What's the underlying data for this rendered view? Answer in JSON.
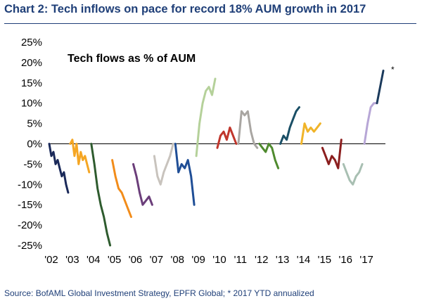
{
  "title": "Chart 2: Tech inflows on pace for record 18% AUM growth in 2017",
  "source": "Source: BofAML Global Investment Strategy, EPFR Global; * 2017 YTD annualized",
  "chart_data": {
    "type": "line",
    "annotation": "Tech flows as % of AUM",
    "end_marker": "*",
    "ylim": [
      -25,
      25
    ],
    "y_ticks": [
      25,
      20,
      15,
      10,
      5,
      0,
      -5,
      -10,
      -15,
      -20,
      -25
    ],
    "y_tick_labels": [
      "25%",
      "20%",
      "15%",
      "10%",
      "5%",
      "0%",
      "-5%",
      "-10%",
      "-15%",
      "-20%",
      "-25%"
    ],
    "x_tick_labels": [
      "'02",
      "'03",
      "'04",
      "'05",
      "'06",
      "'07",
      "'08",
      "'09",
      "'10",
      "'11",
      "'12",
      "'13",
      "'14",
      "'15",
      "'16",
      "'17"
    ],
    "xlim": [
      2002,
      2018
    ],
    "grid": false,
    "legend": "none",
    "series": [
      {
        "year": "2002",
        "color": "#1b2a5a",
        "x": [
          2002.0,
          2002.1,
          2002.2,
          2002.3,
          2002.4,
          2002.5,
          2002.6,
          2002.7,
          2002.8,
          2002.9
        ],
        "values": [
          0,
          -3,
          -2,
          -5,
          -4,
          -6,
          -8,
          -7,
          -10,
          -12
        ]
      },
      {
        "year": "2003",
        "color": "#f5a623",
        "x": [
          2003.0,
          2003.1,
          2003.2,
          2003.3,
          2003.4,
          2003.5,
          2003.6,
          2003.7,
          2003.8,
          2003.9
        ],
        "values": [
          0,
          1,
          -3,
          0,
          -5,
          -2,
          -4,
          -3,
          -5,
          -7
        ]
      },
      {
        "year": "2004",
        "color": "#2e5b2e",
        "x": [
          2004.0,
          2004.15,
          2004.3,
          2004.45,
          2004.6,
          2004.75,
          2004.9
        ],
        "values": [
          0,
          -5,
          -11,
          -15,
          -18,
          -22,
          -25
        ]
      },
      {
        "year": "2005",
        "color": "#f28c1a",
        "x": [
          2005.0,
          2005.15,
          2005.3,
          2005.45,
          2005.6,
          2005.75,
          2005.9
        ],
        "values": [
          -4,
          -8,
          -11,
          -12,
          -14,
          -16,
          -18
        ]
      },
      {
        "year": "2006",
        "color": "#6b3e7a",
        "x": [
          2006.0,
          2006.15,
          2006.3,
          2006.45,
          2006.6,
          2006.75,
          2006.9
        ],
        "values": [
          -5,
          -8,
          -12,
          -15,
          -14,
          -13,
          -15
        ]
      },
      {
        "year": "2007",
        "color": "#c8c3bd",
        "x": [
          2007.0,
          2007.15,
          2007.3,
          2007.45,
          2007.6,
          2007.75,
          2007.9
        ],
        "values": [
          -3,
          -8,
          -10,
          -7,
          -5,
          -3,
          0
        ]
      },
      {
        "year": "2008",
        "color": "#1f4e96",
        "x": [
          2008.0,
          2008.15,
          2008.3,
          2008.45,
          2008.6,
          2008.75,
          2008.9
        ],
        "values": [
          0,
          -7,
          -5,
          -6,
          -4,
          -8,
          -15
        ]
      },
      {
        "year": "2009",
        "color": "#b5d19a",
        "x": [
          2009.0,
          2009.15,
          2009.3,
          2009.45,
          2009.6,
          2009.75,
          2009.9
        ],
        "values": [
          -3,
          5,
          10,
          13,
          14,
          12,
          16
        ]
      },
      {
        "year": "2010",
        "color": "#c0362c",
        "x": [
          2010.0,
          2010.15,
          2010.3,
          2010.45,
          2010.6,
          2010.75,
          2010.9
        ],
        "values": [
          -1,
          2,
          3,
          1,
          4,
          2,
          0
        ]
      },
      {
        "year": "2011",
        "color": "#a9a6a2",
        "x": [
          2011.0,
          2011.15,
          2011.3,
          2011.45,
          2011.6,
          2011.75,
          2011.9
        ],
        "values": [
          0,
          8,
          7,
          8,
          3,
          0,
          -1
        ]
      },
      {
        "year": "2012",
        "color": "#4f8a2e",
        "x": [
          2012.0,
          2012.15,
          2012.3,
          2012.45,
          2012.6,
          2012.75,
          2012.9
        ],
        "values": [
          0,
          -1,
          -2,
          0,
          -1,
          -4,
          -6
        ]
      },
      {
        "year": "2013",
        "color": "#1a4f66",
        "x": [
          2013.0,
          2013.15,
          2013.3,
          2013.45,
          2013.6,
          2013.75,
          2013.9
        ],
        "values": [
          0,
          2,
          1,
          4,
          6,
          8,
          9
        ]
      },
      {
        "year": "2014",
        "color": "#f0b429",
        "x": [
          2014.0,
          2014.15,
          2014.3,
          2014.45,
          2014.6,
          2014.75,
          2014.9
        ],
        "values": [
          0,
          5,
          3,
          4,
          3,
          4,
          5
        ]
      },
      {
        "year": "2015",
        "color": "#8b1e1e",
        "x": [
          2015.0,
          2015.15,
          2015.3,
          2015.45,
          2015.6,
          2015.75,
          2015.9
        ],
        "values": [
          -1,
          -3,
          -5,
          -3,
          -4,
          -6,
          1
        ]
      },
      {
        "year": "2016",
        "color": "#a8bfb2",
        "x": [
          2016.0,
          2016.15,
          2016.3,
          2016.45,
          2016.6,
          2016.75,
          2016.9
        ],
        "values": [
          -5,
          -7,
          -9,
          -10,
          -8,
          -7,
          -5
        ]
      },
      {
        "year": "2017",
        "color": "#b7a6d6",
        "x": [
          2017.0,
          2017.15,
          2017.3,
          2017.45,
          2017.6
        ],
        "values": [
          0,
          5,
          9,
          10,
          10
        ]
      },
      {
        "year": "2017 YTD annualized",
        "color": "#1b3a5c",
        "x": [
          2017.6,
          2017.75,
          2017.9
        ],
        "values": [
          10,
          14,
          18
        ]
      }
    ]
  }
}
